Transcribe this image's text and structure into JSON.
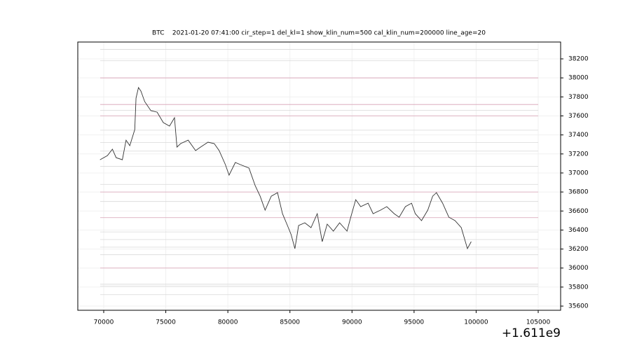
{
  "chart_data": {
    "type": "line",
    "title": "BTC    2021-01-20 07:41:00 cir_step=1 del_kl=1 show_klin_num=500 cal_klin_num=200000 line_age=20",
    "x_offset_label": "+1.611e9",
    "x": [
      69700,
      70300,
      70700,
      71000,
      71500,
      71800,
      72100,
      72500,
      72600,
      72800,
      73000,
      73300,
      73800,
      74300,
      74800,
      75300,
      75700,
      75900,
      76200,
      76800,
      77400,
      77800,
      78400,
      78900,
      79300,
      79800,
      80100,
      80600,
      81000,
      81700,
      82200,
      82600,
      83000,
      83500,
      84000,
      84400,
      84800,
      85100,
      85400,
      85700,
      86200,
      86700,
      87200,
      87600,
      88000,
      88500,
      89000,
      89600,
      89900,
      90300,
      90700,
      91300,
      91700,
      92300,
      92800,
      93400,
      93800,
      94300,
      94800,
      95100,
      95600,
      96100,
      96500,
      96800,
      97300,
      97800,
      98300,
      98800,
      99300,
      99600
    ],
    "series": [
      {
        "name": "BTC",
        "color": "#333333",
        "values": [
          37139,
          37183,
          37250,
          37161,
          37139,
          37345,
          37287,
          37456,
          37787,
          37898,
          37861,
          37750,
          37655,
          37640,
          37530,
          37493,
          37581,
          37272,
          37309,
          37345,
          37235,
          37272,
          37324,
          37309,
          37235,
          37088,
          36977,
          37110,
          37088,
          37051,
          36867,
          36756,
          36609,
          36756,
          36793,
          36572,
          36447,
          36351,
          36204,
          36447,
          36476,
          36425,
          36572,
          36278,
          36462,
          36388,
          36476,
          36388,
          36535,
          36719,
          36646,
          36682,
          36572,
          36609,
          36646,
          36572,
          36535,
          36646,
          36682,
          36572,
          36499,
          36609,
          36756,
          36793,
          36682,
          36535,
          36499,
          36425,
          36204,
          36278
        ]
      }
    ],
    "levels": [
      {
        "value": 38000,
        "color": "#d8a0b4"
      },
      {
        "value": 37720,
        "color": "#d8a0b4"
      },
      {
        "value": 37600,
        "color": "#d8a0b4"
      },
      {
        "value": 36800,
        "color": "#d8a0b4"
      },
      {
        "value": 36530,
        "color": "#d8a0b4"
      },
      {
        "value": 36000,
        "color": "#d8a0b4"
      },
      {
        "value": 38300,
        "color": "#d8d8d8"
      },
      {
        "value": 38180,
        "color": "#d8d8d8"
      },
      {
        "value": 37660,
        "color": "#d8d8d8"
      },
      {
        "value": 37450,
        "color": "#d8d8d8"
      },
      {
        "value": 37320,
        "color": "#d8d8d8"
      },
      {
        "value": 37230,
        "color": "#d8d8d8"
      },
      {
        "value": 37070,
        "color": "#d8d8d8"
      },
      {
        "value": 36880,
        "color": "#d8d8d8"
      },
      {
        "value": 36700,
        "color": "#d8d8d8"
      },
      {
        "value": 36380,
        "color": "#d8d8d8"
      },
      {
        "value": 36300,
        "color": "#d8d8d8"
      },
      {
        "value": 36220,
        "color": "#d8d8d8"
      },
      {
        "value": 36140,
        "color": "#d8d8d8"
      },
      {
        "value": 35830,
        "color": "#d8d8d8"
      },
      {
        "value": 35810,
        "color": "#d8d8d8"
      },
      {
        "value": 35720,
        "color": "#d8d8d8"
      }
    ],
    "xlim": [
      67911,
      106806
    ],
    "ylim": [
      35556,
      38377
    ],
    "xticks": [
      70000,
      75000,
      80000,
      85000,
      90000,
      95000,
      100000,
      105000
    ],
    "yticks": [
      35600,
      35800,
      36000,
      36200,
      36400,
      36600,
      36800,
      37000,
      37200,
      37400,
      37600,
      37800,
      38000,
      38200
    ],
    "y_axis_side": "right",
    "grid": true
  }
}
